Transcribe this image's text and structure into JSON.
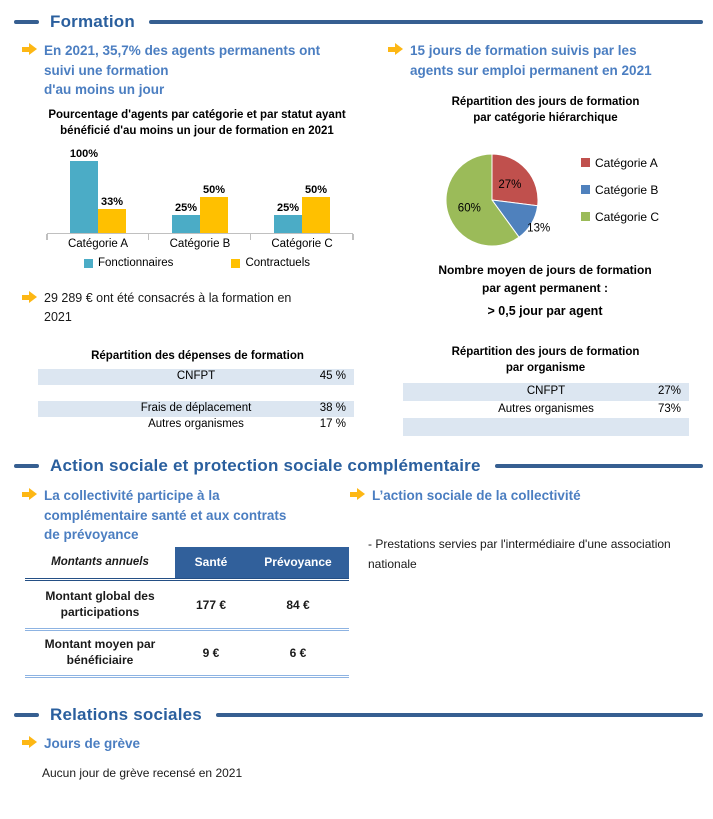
{
  "colors": {
    "section_blue": "#365f91",
    "heading_text_blue": "#2a5f9e",
    "bullet_text_blue": "#4b7ec1",
    "arrow_yellow": "#fdb714",
    "row_shade": "#dce6f1",
    "table_header_bg": "#31609b"
  },
  "sections": {
    "formation": {
      "title": "Formation"
    },
    "action_sociale": {
      "title": "Action sociale et protection sociale complémentaire"
    },
    "relations_sociales": {
      "title": "Relations sociales"
    }
  },
  "formation": {
    "bullet_left": "En 2021, 35,7% des agents permanents ont\nsuivi une formation\nd'au moins un jour",
    "bullet_right": "15 jours de formation suivis par les\nagents sur emploi permanent en 2021",
    "expense_note": "29 289 € ont été consacrés à la formation en\n2021",
    "avg_title": "Nombre moyen de jours de formation\npar agent permanent :",
    "avg_value": "> 0,5 jour par agent",
    "expense_table": {
      "title": "Répartition des dépenses de formation",
      "rows": [
        {
          "label": "CNFPT",
          "value": "45 %",
          "shaded": true
        },
        {
          "label": "",
          "value": "",
          "shaded": false
        },
        {
          "label": "Frais de déplacement",
          "value": "38 %",
          "shaded": true
        },
        {
          "label": "Autres organismes",
          "value": "17 %",
          "shaded": false
        }
      ]
    },
    "organisme_table": {
      "title": "Répartition des jours de formation\npar organisme",
      "rows": [
        {
          "label": "CNFPT",
          "value": "27%",
          "shaded": true
        },
        {
          "label": "Autres organismes",
          "value": "73%",
          "shaded": false
        },
        {
          "label": "",
          "value": "",
          "shaded": true
        }
      ]
    }
  },
  "chart_data": [
    {
      "type": "bar",
      "title": "Pourcentage d'agents par catégorie et par statut ayant\nbénéficié d'au moins un jour de formation en 2021",
      "categories": [
        "Catégorie A",
        "Catégorie B",
        "Catégorie C"
      ],
      "series": [
        {
          "name": "Fonctionnaires",
          "color": "#4bacc6",
          "values": [
            100,
            25,
            25
          ]
        },
        {
          "name": "Contractuels",
          "color": "#ffc000",
          "values": [
            33,
            50,
            50
          ]
        }
      ],
      "ylim": [
        0,
        100
      ],
      "grid": false,
      "legend_position": "bottom",
      "value_label_suffix": "%"
    },
    {
      "type": "pie",
      "title": "Répartition des jours de formation\npar catégorie hiérarchique",
      "labels": [
        "Catégorie A",
        "Catégorie B",
        "Catégorie C"
      ],
      "values": [
        27,
        13,
        60
      ],
      "colors": [
        "#c0504d",
        "#4f81bd",
        "#9bbb59"
      ],
      "legend_position": "right",
      "value_label_suffix": "%"
    }
  ],
  "action_sociale": {
    "bullet_left": "La collectivité participe à la\ncomplémentaire santé et aux contrats\nde prévoyance",
    "bullet_right": "L’action sociale de la collectivité",
    "note_right": "- Prestations servies par l'intermédiaire d'une association nationale",
    "table": {
      "corner": "Montants annuels",
      "columns": [
        "Santé",
        "Prévoyance"
      ],
      "rows": [
        {
          "label": "Montant global des participations",
          "values": [
            "177 €",
            "84 €"
          ]
        },
        {
          "label": "Montant moyen par bénéficiaire",
          "values": [
            "9 €",
            "6 €"
          ]
        }
      ]
    }
  },
  "relations_sociales": {
    "bullet": "Jours de grève",
    "note": "Aucun jour de grève recensé en 2021"
  }
}
